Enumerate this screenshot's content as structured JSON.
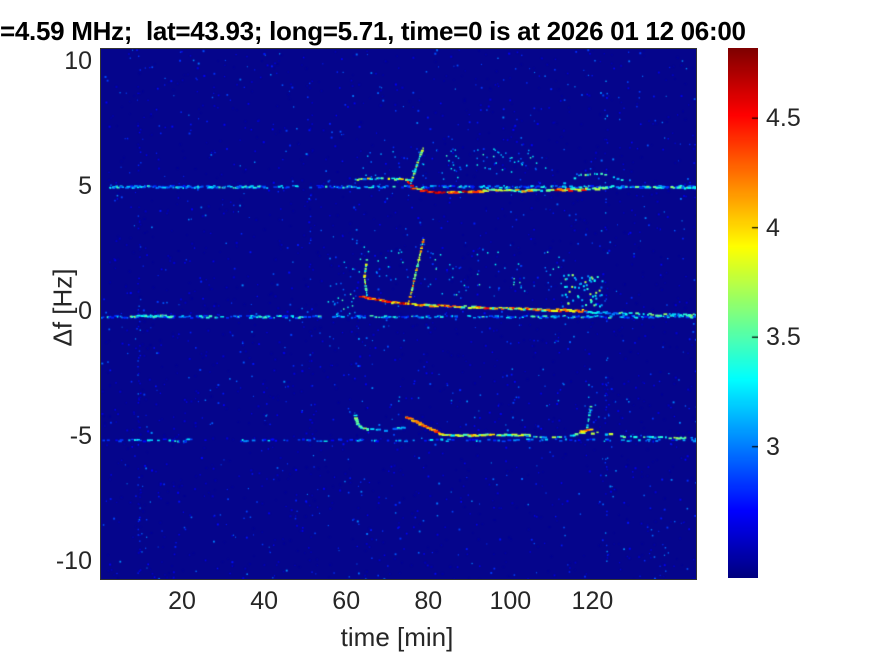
{
  "chart_data": {
    "type": "heatmap",
    "subtype": "doppler-spectrogram",
    "title": "=4.59 MHz;  lat=43.93; long=5.71, time=0 is at 2026 01 12 06:00",
    "xlabel": "time [min]",
    "ylabel": "Δf [Hz]",
    "xlim": [
      0,
      145
    ],
    "ylim": [
      -10.7,
      10.5
    ],
    "xticks": [
      20,
      40,
      60,
      80,
      100,
      120
    ],
    "yticks": [
      10,
      5,
      0,
      -5,
      -10
    ],
    "grid": false,
    "colormap": "jet",
    "background_color": "#05058c",
    "background_value": 2.42,
    "colorbar": {
      "range": [
        2.4,
        4.82
      ],
      "ticks": [
        3,
        3.5,
        4,
        4.5
      ],
      "position": "right"
    },
    "description": "Three weak horizontal Doppler lines at +5, 0 and -5 Hz across 0-145 min; strong chirped disturbances (red/orange, intensity up to ~4.8) appear on all three lines from ~60 min onward, with upward whisker chirps near t=65-78 min and secondary bright knots near t=110-120 min.",
    "features": {
      "noise": {
        "count": 2400,
        "v": [
          2.45,
          3.05
        ],
        "dot": [
          1,
          2
        ]
      },
      "stripes": [
        {
          "t": 9.2,
          "count": 80,
          "v": [
            2.5,
            3.0
          ]
        },
        {
          "t": 51.0,
          "count": 40,
          "v": [
            2.5,
            2.9
          ]
        },
        {
          "t": 123.0,
          "count": 55,
          "v": [
            2.55,
            3.1
          ]
        }
      ],
      "baselines": [
        {
          "df": 5.02,
          "t": [
            0,
            145
          ],
          "density": 0.55,
          "v": [
            2.75,
            3.5
          ],
          "jit": 1.1
        },
        {
          "df": -0.18,
          "t": [
            0,
            145
          ],
          "density": 0.65,
          "v": [
            2.75,
            3.55
          ],
          "jit": 1.1
        },
        {
          "df": -5.12,
          "t": [
            0,
            145
          ],
          "density": 0.32,
          "v": [
            2.7,
            3.4
          ],
          "jit": 1.1
        },
        {
          "df": -0.15,
          "t": [
            7,
            17
          ],
          "density": 0.9,
          "v": [
            3.1,
            3.8
          ],
          "jit": 0.8
        },
        {
          "df": 5.0,
          "t": [
            2,
            40
          ],
          "density": 0.45,
          "v": [
            2.9,
            3.5
          ],
          "jit": 0.9
        }
      ],
      "traces": [
        {
          "pts": [
            [
              61,
              5.3
            ],
            [
              68,
              5.35
            ],
            [
              75,
              5.3
            ]
          ],
          "v": [
            3.0,
            4.1
          ],
          "density": 0.8,
          "jit": 0.7,
          "dash": 3
        },
        {
          "pts": [
            [
              74.8,
              5.2
            ],
            [
              75.8,
              5.1
            ]
          ],
          "v": [
            4.4,
            4.85
          ],
          "density": 1.0,
          "jit": 0.8,
          "dash": 3
        },
        {
          "pts": [
            [
              75.5,
              5.15
            ],
            [
              77,
              5.9
            ],
            [
              78.5,
              6.55
            ]
          ],
          "v": [
            3.0,
            3.9
          ],
          "density": 0.9,
          "jit": 0.4,
          "dash": 2
        },
        {
          "pts": [
            [
              76,
              4.95
            ],
            [
              82,
              4.78
            ],
            [
              90,
              4.82
            ],
            [
              95,
              4.88
            ]
          ],
          "v": [
            3.4,
            4.85
          ],
          "density": 0.95,
          "jit": 0.8,
          "dash": 4
        },
        {
          "pts": [
            [
              95,
              4.9
            ],
            [
              102,
              4.86
            ],
            [
              109,
              4.9
            ]
          ],
          "v": [
            3.2,
            4.3
          ],
          "density": 0.85,
          "jit": 0.8,
          "dash": 4
        },
        {
          "pts": [
            [
              109,
              4.9
            ],
            [
              115,
              4.9
            ],
            [
              121,
              4.95
            ]
          ],
          "v": [
            3.4,
            4.8
          ],
          "density": 0.95,
          "jit": 0.9,
          "dash": 4
        },
        {
          "pts": [
            [
              121,
              4.98
            ],
            [
              128,
              5.0
            ],
            [
              137,
              5.0
            ],
            [
              145,
              5.0
            ]
          ],
          "v": [
            2.8,
            3.7
          ],
          "density": 0.6,
          "jit": 0.9,
          "dash": 3
        },
        {
          "pts": [
            [
              113,
              5.15
            ],
            [
              117,
              5.5
            ],
            [
              122,
              5.55
            ],
            [
              127,
              5.3
            ]
          ],
          "v": [
            3.1,
            3.7
          ],
          "density": 0.55,
          "jit": 0.5,
          "dash": 2
        },
        {
          "pts": [
            [
              63.5,
              0.62
            ],
            [
              66,
              0.55
            ],
            [
              70,
              0.42
            ],
            [
              74,
              0.35
            ],
            [
              78,
              0.3
            ]
          ],
          "v": [
            3.8,
            4.85
          ],
          "density": 1.0,
          "jit": 0.7,
          "dash": 4
        },
        {
          "pts": [
            [
              78,
              0.3
            ],
            [
              85,
              0.25
            ],
            [
              92,
              0.2
            ],
            [
              100,
              0.15
            ],
            [
              109,
              0.1
            ]
          ],
          "v": [
            3.3,
            4.6
          ],
          "density": 0.9,
          "jit": 0.8,
          "dash": 4
        },
        {
          "pts": [
            [
              109,
              0.1
            ],
            [
              113,
              0.08
            ],
            [
              118,
              0.05
            ]
          ],
          "v": [
            3.8,
            4.5
          ],
          "density": 0.9,
          "jit": 1.2,
          "dash": 4
        },
        {
          "pts": [
            [
              118,
              0.0
            ],
            [
              128,
              -0.05
            ],
            [
              137,
              -0.1
            ],
            [
              145,
              -0.1
            ]
          ],
          "v": [
            2.9,
            3.7
          ],
          "density": 0.7,
          "jit": 0.9,
          "dash": 3
        },
        {
          "pts": [
            [
              64.8,
              0.7
            ],
            [
              64.2,
              1.4
            ],
            [
              64.8,
              2.1
            ]
          ],
          "v": [
            3.2,
            4.0
          ],
          "density": 0.9,
          "jit": 0.4,
          "dash": 2
        },
        {
          "pts": [
            [
              74.9,
              0.35
            ],
            [
              75.8,
              0.9
            ],
            [
              76.6,
              1.5
            ],
            [
              77.6,
              2.2
            ],
            [
              78.6,
              2.9
            ]
          ],
          "v": [
            3.4,
            4.3
          ],
          "density": 0.95,
          "jit": 0.4,
          "dash": 2
        },
        {
          "pts": [
            [
              62,
              -4.15
            ],
            [
              62.6,
              -4.45
            ],
            [
              63.5,
              -4.62
            ],
            [
              65,
              -4.68
            ]
          ],
          "v": [
            3.1,
            3.8
          ],
          "density": 0.9,
          "jit": 0.5,
          "dash": 3
        },
        {
          "pts": [
            [
              65,
              -4.68
            ],
            [
              70,
              -4.72
            ],
            [
              74,
              -4.6
            ]
          ],
          "v": [
            2.9,
            3.5
          ],
          "density": 0.6,
          "jit": 0.6,
          "dash": 3
        },
        {
          "pts": [
            [
              74.5,
              -4.2
            ],
            [
              76.5,
              -4.35
            ],
            [
              79,
              -4.55
            ],
            [
              81.5,
              -4.75
            ],
            [
              83,
              -4.88
            ]
          ],
          "v": [
            3.9,
            4.5
          ],
          "density": 1.0,
          "jit": 0.5,
          "dash": 4
        },
        {
          "pts": [
            [
              83,
              -4.9
            ],
            [
              90,
              -4.92
            ],
            [
              97,
              -4.9
            ],
            [
              104,
              -4.92
            ]
          ],
          "v": [
            3.2,
            4.15
          ],
          "density": 0.85,
          "jit": 0.7,
          "dash": 4
        },
        {
          "pts": [
            [
              104,
              -4.95
            ],
            [
              112,
              -5.0
            ],
            [
              117,
              -4.85
            ],
            [
              121,
              -4.8
            ],
            [
              127,
              -4.95
            ],
            [
              134,
              -5.0
            ],
            [
              145,
              -5.05
            ]
          ],
          "v": [
            2.9,
            3.8
          ],
          "density": 0.55,
          "jit": 0.8,
          "dash": 3
        },
        {
          "pts": [
            [
              117,
              -4.75
            ],
            [
              119.5,
              -4.7
            ]
          ],
          "v": [
            3.8,
            4.3
          ],
          "density": 1.0,
          "jit": 1.0,
          "dash": 4
        },
        {
          "pts": [
            [
              118.5,
              -4.6
            ],
            [
              119,
              -4.1
            ],
            [
              119.5,
              -3.7
            ]
          ],
          "v": [
            3.0,
            3.6
          ],
          "density": 0.7,
          "jit": 0.4,
          "dash": 2
        }
      ],
      "clouds": [
        {
          "t": [
            112,
            122
          ],
          "df": [
            0.2,
            1.5
          ],
          "count": 60,
          "v": [
            3.0,
            3.8
          ],
          "dot": 2
        },
        {
          "t": [
            63,
            110
          ],
          "df": [
            5.3,
            6.6
          ],
          "count": 50,
          "v": [
            2.8,
            3.4
          ],
          "dot": 1.5
        },
        {
          "t": [
            84,
            106
          ],
          "df": [
            5.6,
            6.5
          ],
          "count": 35,
          "v": [
            2.9,
            3.5
          ],
          "dot": 1.5
        },
        {
          "t": [
            80,
            112
          ],
          "df": [
            0.5,
            2.4
          ],
          "count": 55,
          "v": [
            2.8,
            3.5
          ],
          "dot": 1.5
        },
        {
          "t": [
            57,
            80
          ],
          "df": [
            1.2,
            3.2
          ],
          "count": 35,
          "v": [
            2.8,
            3.4
          ],
          "dot": 1.5
        },
        {
          "t": [
            60,
            122
          ],
          "df": [
            -4.4,
            -2.6
          ],
          "count": 30,
          "v": [
            2.7,
            3.2
          ],
          "dot": 1.5
        },
        {
          "t": [
            55,
            62
          ],
          "df": [
            -0.4,
            1.3
          ],
          "count": 25,
          "v": [
            2.9,
            3.5
          ],
          "dot": 1.5
        }
      ]
    }
  }
}
